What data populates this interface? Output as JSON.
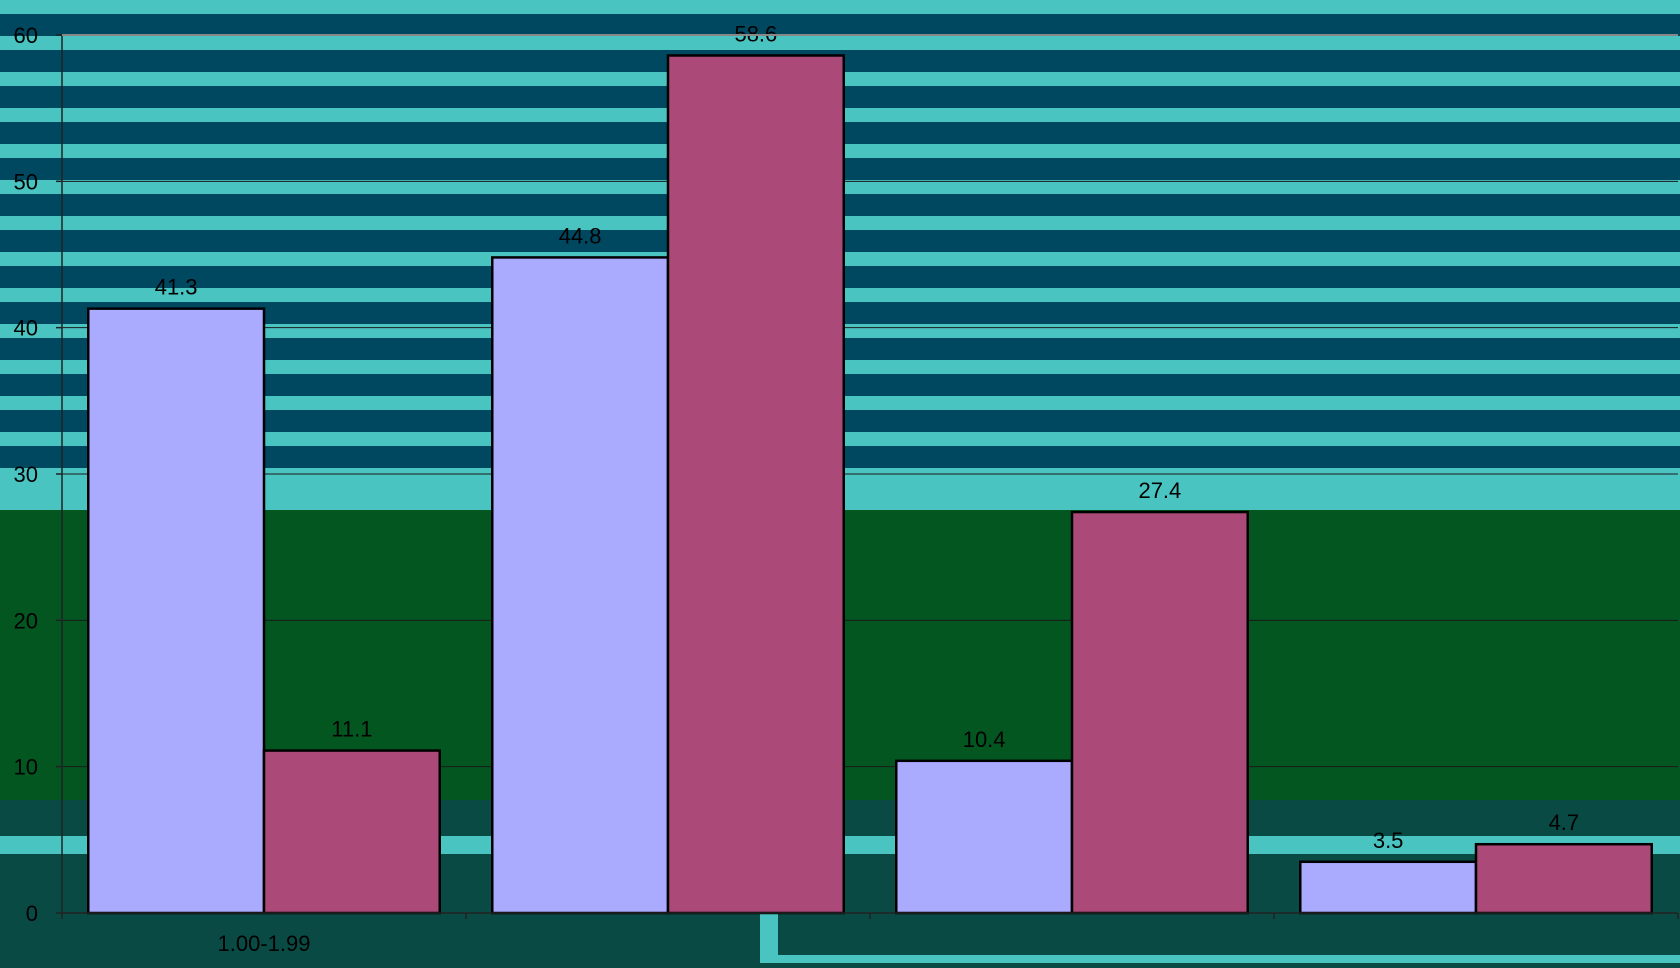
{
  "chart_data": {
    "type": "bar",
    "title": "",
    "xlabel": "",
    "ylabel": "",
    "categories": [
      "1.00-1.99",
      "",
      "",
      ""
    ],
    "series": [
      {
        "values": [
          41.3,
          44.8,
          10.4,
          3.5
        ],
        "color": "#aaaaff"
      },
      {
        "values": [
          11.1,
          58.6,
          27.4,
          4.7
        ],
        "color": "#ab4a78"
      }
    ],
    "ylim": [
      0,
      60
    ],
    "yticks": [
      0,
      10,
      20,
      30,
      40,
      50,
      60
    ],
    "grid": true,
    "legend": "none"
  },
  "background": {
    "stripe_dark": "#004760",
    "stripe_light": "#4ac4c1",
    "field_green": "#035620",
    "bottom_teal": "#0a4a44"
  }
}
